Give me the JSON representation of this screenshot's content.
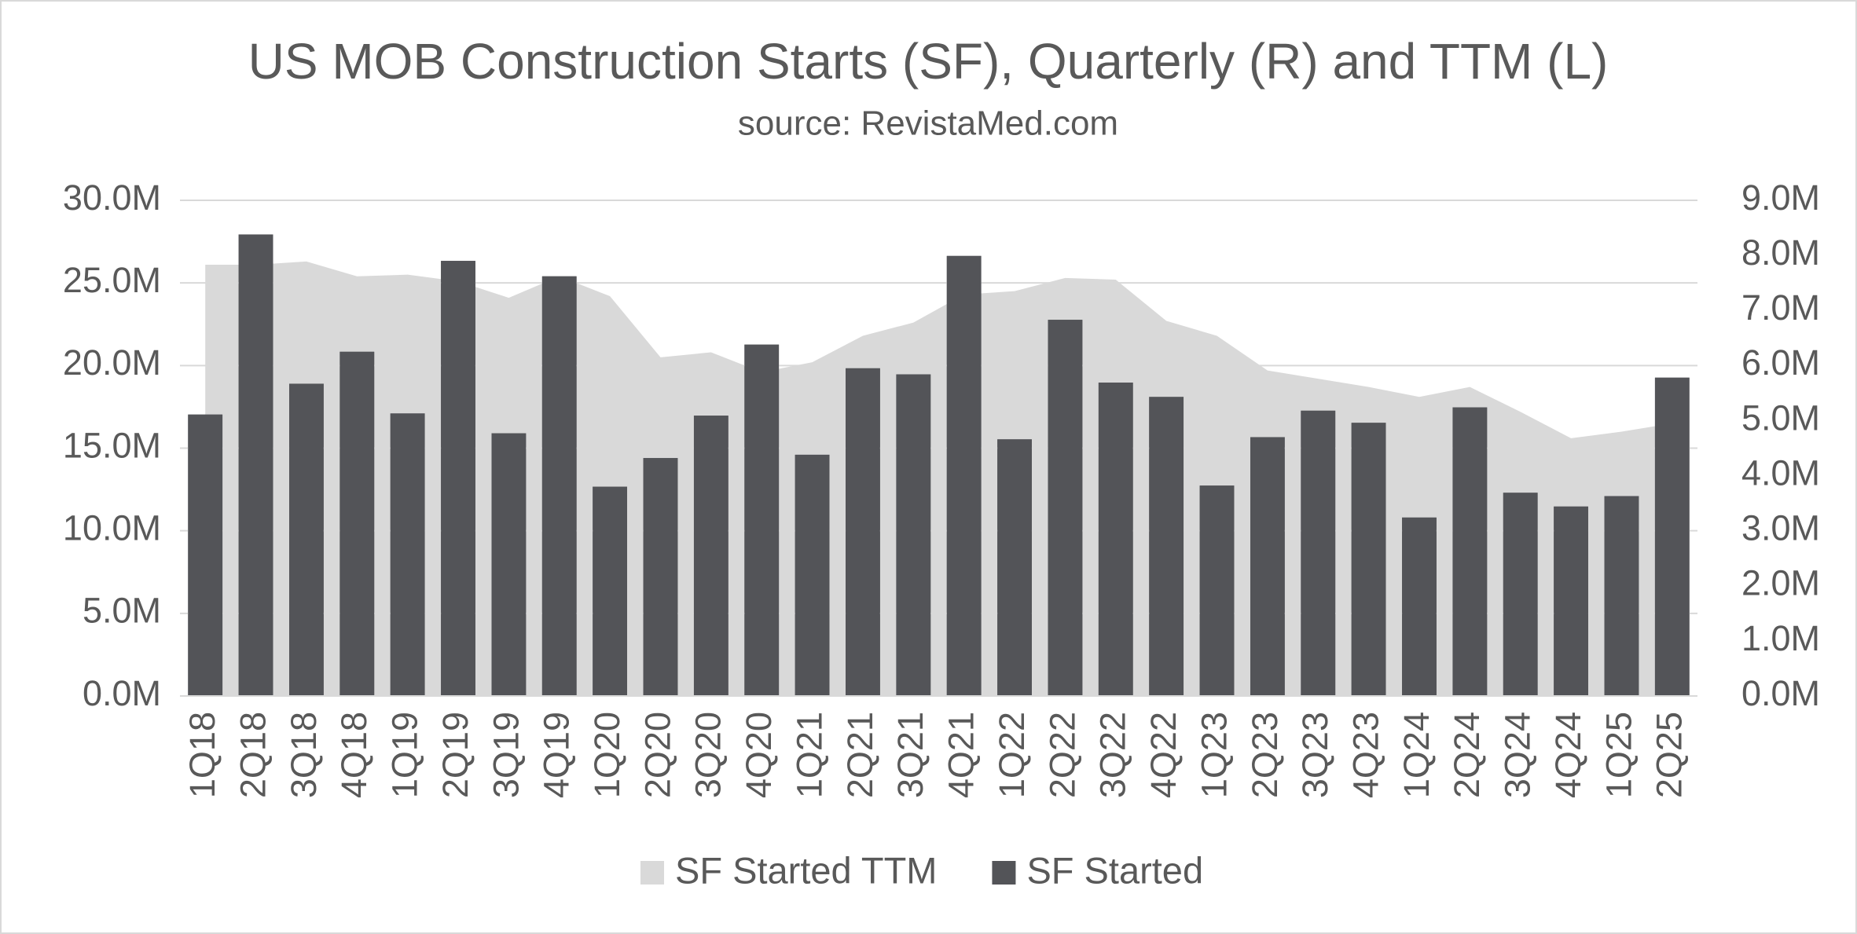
{
  "chart_data": {
    "type": "bar-area",
    "title": "US MOB Construction Starts (SF), Quarterly (R) and TTM (L)",
    "subtitle": "source: RevistaMed.com",
    "categories": [
      "1Q18",
      "2Q18",
      "3Q18",
      "4Q18",
      "1Q19",
      "2Q19",
      "3Q19",
      "4Q19",
      "1Q20",
      "2Q20",
      "3Q20",
      "4Q20",
      "1Q21",
      "2Q21",
      "3Q21",
      "4Q21",
      "1Q22",
      "2Q22",
      "3Q22",
      "4Q22",
      "1Q23",
      "2Q23",
      "3Q23",
      "4Q23",
      "1Q24",
      "2Q24",
      "3Q24",
      "4Q24",
      "1Q25",
      "2Q25"
    ],
    "series": [
      {
        "name": "SF Started TTM",
        "color": "#d9d9d9",
        "kind": "area",
        "axis": "y",
        "values": [
          26100000,
          26100000,
          26300000,
          25400000,
          25500000,
          25100000,
          24100000,
          25400000,
          24200000,
          20500000,
          20800000,
          19600000,
          20200000,
          21800000,
          22600000,
          24300000,
          24500000,
          25300000,
          25200000,
          22700000,
          21800000,
          19700000,
          19200000,
          18700000,
          18100000,
          18700000,
          17200000,
          15600000,
          16000000,
          16500000
        ]
      },
      {
        "name": "SF Started",
        "color": "#535458",
        "kind": "bar",
        "axis": "y2",
        "values": [
          5110000,
          8380000,
          5670000,
          6250000,
          5130000,
          7900000,
          4770000,
          7620000,
          3800000,
          4320000,
          5090000,
          6380000,
          4380000,
          5950000,
          5840000,
          7990000,
          4660000,
          6830000,
          5690000,
          5430000,
          3820000,
          4700000,
          5180000,
          4960000,
          3240000,
          5240000,
          3690000,
          3440000,
          3630000,
          5780000
        ]
      }
    ],
    "ylim": [
      0,
      30000000
    ],
    "yticks": [
      {
        "value": 0,
        "label": "0.0M"
      },
      {
        "value": 5000000,
        "label": "5.0M"
      },
      {
        "value": 10000000,
        "label": "10.0M"
      },
      {
        "value": 15000000,
        "label": "15.0M"
      },
      {
        "value": 20000000,
        "label": "20.0M"
      },
      {
        "value": 25000000,
        "label": "25.0M"
      },
      {
        "value": 30000000,
        "label": "30.0M"
      }
    ],
    "y2lim": [
      0,
      9000000
    ],
    "y2ticks": [
      {
        "value": 0,
        "label": "0.0M"
      },
      {
        "value": 1000000,
        "label": "1.0M"
      },
      {
        "value": 2000000,
        "label": "2.0M"
      },
      {
        "value": 3000000,
        "label": "3.0M"
      },
      {
        "value": 4000000,
        "label": "4.0M"
      },
      {
        "value": 5000000,
        "label": "5.0M"
      },
      {
        "value": 6000000,
        "label": "6.0M"
      },
      {
        "value": 7000000,
        "label": "7.0M"
      },
      {
        "value": 8000000,
        "label": "8.0M"
      },
      {
        "value": 9000000,
        "label": "9.0M"
      }
    ],
    "grid": true,
    "legend": "bottom"
  }
}
